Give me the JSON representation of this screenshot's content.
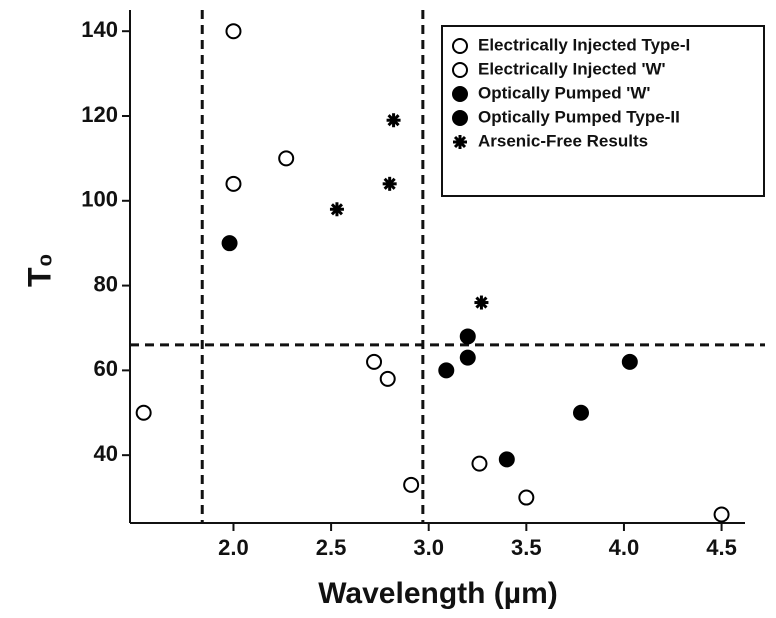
{
  "chart_data": {
    "type": "scatter",
    "x_label": "Wavelength (µm)",
    "y_label": "T₀",
    "xlim": [
      1.47,
      4.62
    ],
    "ylim": [
      24,
      145
    ],
    "xticks": [
      {
        "value": 2.0,
        "label": "2.0"
      },
      2.5,
      {
        "value": 3.0,
        "label": "3.0"
      },
      3.5,
      {
        "value": 4.0,
        "label": "4.0"
      },
      4.5
    ],
    "yticks": [
      40,
      60,
      80,
      100,
      120,
      140
    ],
    "reference_lines": {
      "x": [
        1.84,
        2.97
      ],
      "y": [
        66
      ]
    },
    "series": [
      {
        "name": "Electrically Injected Type-I",
        "color": "#000000",
        "marker": "open-circle",
        "x": [
          1.54,
          2.0,
          2.0,
          2.27,
          4.5
        ],
        "values": [
          50,
          140,
          104,
          110,
          26
        ]
      },
      {
        "name": "Electrically Injected 'W'",
        "color": "#000000",
        "marker": "open-circle",
        "x": [
          2.72,
          2.79,
          2.91,
          3.26,
          3.5
        ],
        "values": [
          62,
          58,
          33,
          38,
          30
        ]
      },
      {
        "name": "Optically Pumped 'W'",
        "color": "#000000",
        "marker": "filled-circle",
        "x": [
          1.98,
          3.09,
          3.2,
          3.2
        ],
        "values": [
          90,
          60,
          68,
          63
        ]
      },
      {
        "name": "Optically Pumped Type-II",
        "color": "#000000",
        "marker": "filled-circle",
        "x": [
          3.4,
          3.78,
          4.03
        ],
        "values": [
          39,
          50,
          62
        ]
      },
      {
        "name": "Arsenic-Free Results",
        "color": "#000000",
        "marker": "star",
        "x": [
          2.53,
          2.8,
          2.82,
          3.27
        ],
        "values": [
          98,
          104,
          119,
          76
        ]
      }
    ]
  }
}
